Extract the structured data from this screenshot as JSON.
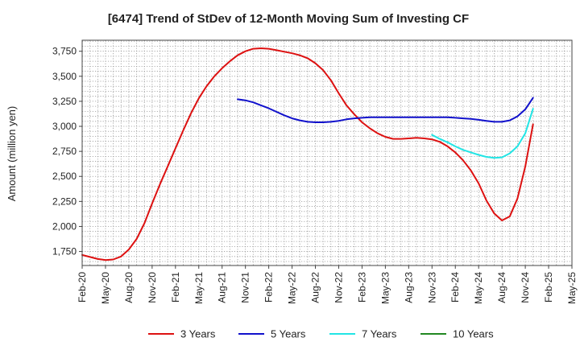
{
  "chart_data": {
    "type": "line",
    "title": "[6474]  Trend of StDev of 12-Month Moving Sum of Investing CF",
    "xlabel": "",
    "ylabel": "Amount (million yen)",
    "x_tick_labels": [
      "Feb-20",
      "May-20",
      "Aug-20",
      "Nov-20",
      "Feb-21",
      "May-21",
      "Aug-21",
      "Nov-21",
      "Feb-22",
      "May-22",
      "Aug-22",
      "Nov-22",
      "Feb-23",
      "May-23",
      "Aug-23",
      "Nov-23",
      "Feb-24",
      "May-24",
      "Aug-24",
      "Nov-24",
      "Feb-25",
      "May-25"
    ],
    "y_ticks": [
      1750,
      2000,
      2250,
      2500,
      2750,
      3000,
      3250,
      3500,
      3750
    ],
    "ylim": [
      1610,
      3860
    ],
    "grid": true,
    "legend_position": "bottom",
    "series": [
      {
        "name": "3 Years",
        "color": "#dd1111",
        "points": [
          [
            "2020-02",
            1715
          ],
          [
            "2020-03",
            1695
          ],
          [
            "2020-04",
            1675
          ],
          [
            "2020-05",
            1665
          ],
          [
            "2020-06",
            1670
          ],
          [
            "2020-07",
            1700
          ],
          [
            "2020-08",
            1770
          ],
          [
            "2020-09",
            1875
          ],
          [
            "2020-10",
            2030
          ],
          [
            "2020-11",
            2230
          ],
          [
            "2020-12",
            2420
          ],
          [
            "2021-01",
            2600
          ],
          [
            "2021-02",
            2780
          ],
          [
            "2021-03",
            2960
          ],
          [
            "2021-04",
            3130
          ],
          [
            "2021-05",
            3280
          ],
          [
            "2021-06",
            3400
          ],
          [
            "2021-07",
            3500
          ],
          [
            "2021-08",
            3580
          ],
          [
            "2021-09",
            3650
          ],
          [
            "2021-10",
            3710
          ],
          [
            "2021-11",
            3750
          ],
          [
            "2021-12",
            3775
          ],
          [
            "2022-01",
            3780
          ],
          [
            "2022-02",
            3775
          ],
          [
            "2022-03",
            3760
          ],
          [
            "2022-04",
            3745
          ],
          [
            "2022-05",
            3730
          ],
          [
            "2022-06",
            3710
          ],
          [
            "2022-07",
            3680
          ],
          [
            "2022-08",
            3630
          ],
          [
            "2022-09",
            3560
          ],
          [
            "2022-10",
            3460
          ],
          [
            "2022-11",
            3330
          ],
          [
            "2022-12",
            3210
          ],
          [
            "2023-01",
            3120
          ],
          [
            "2023-02",
            3040
          ],
          [
            "2023-03",
            2980
          ],
          [
            "2023-04",
            2930
          ],
          [
            "2023-05",
            2895
          ],
          [
            "2023-06",
            2875
          ],
          [
            "2023-07",
            2875
          ],
          [
            "2023-08",
            2880
          ],
          [
            "2023-09",
            2885
          ],
          [
            "2023-10",
            2880
          ],
          [
            "2023-11",
            2870
          ],
          [
            "2023-12",
            2845
          ],
          [
            "2024-01",
            2800
          ],
          [
            "2024-02",
            2740
          ],
          [
            "2024-03",
            2660
          ],
          [
            "2024-04",
            2560
          ],
          [
            "2024-05",
            2430
          ],
          [
            "2024-06",
            2260
          ],
          [
            "2024-07",
            2130
          ],
          [
            "2024-08",
            2060
          ],
          [
            "2024-09",
            2100
          ],
          [
            "2024-10",
            2280
          ],
          [
            "2024-11",
            2600
          ],
          [
            "2024-12",
            3020
          ]
        ]
      },
      {
        "name": "5 Years",
        "color": "#1111cc",
        "points": [
          [
            "2021-10",
            3270
          ],
          [
            "2021-11",
            3260
          ],
          [
            "2021-12",
            3240
          ],
          [
            "2022-01",
            3210
          ],
          [
            "2022-02",
            3180
          ],
          [
            "2022-03",
            3145
          ],
          [
            "2022-04",
            3110
          ],
          [
            "2022-05",
            3080
          ],
          [
            "2022-06",
            3060
          ],
          [
            "2022-07",
            3045
          ],
          [
            "2022-08",
            3040
          ],
          [
            "2022-09",
            3040
          ],
          [
            "2022-10",
            3045
          ],
          [
            "2022-11",
            3055
          ],
          [
            "2022-12",
            3070
          ],
          [
            "2023-01",
            3080
          ],
          [
            "2023-02",
            3085
          ],
          [
            "2023-03",
            3090
          ],
          [
            "2023-04",
            3090
          ],
          [
            "2023-05",
            3090
          ],
          [
            "2023-06",
            3090
          ],
          [
            "2023-07",
            3090
          ],
          [
            "2023-08",
            3090
          ],
          [
            "2023-09",
            3090
          ],
          [
            "2023-10",
            3090
          ],
          [
            "2023-11",
            3090
          ],
          [
            "2023-12",
            3090
          ],
          [
            "2024-01",
            3090
          ],
          [
            "2024-02",
            3085
          ],
          [
            "2024-03",
            3080
          ],
          [
            "2024-04",
            3075
          ],
          [
            "2024-05",
            3065
          ],
          [
            "2024-06",
            3055
          ],
          [
            "2024-07",
            3045
          ],
          [
            "2024-08",
            3045
          ],
          [
            "2024-09",
            3060
          ],
          [
            "2024-10",
            3100
          ],
          [
            "2024-11",
            3170
          ],
          [
            "2024-12",
            3285
          ]
        ]
      },
      {
        "name": "7 Years",
        "color": "#22e5e5",
        "points": [
          [
            "2023-11",
            2915
          ],
          [
            "2023-12",
            2875
          ],
          [
            "2024-01",
            2840
          ],
          [
            "2024-02",
            2800
          ],
          [
            "2024-03",
            2765
          ],
          [
            "2024-04",
            2740
          ],
          [
            "2024-05",
            2715
          ],
          [
            "2024-06",
            2695
          ],
          [
            "2024-07",
            2685
          ],
          [
            "2024-08",
            2690
          ],
          [
            "2024-09",
            2730
          ],
          [
            "2024-10",
            2800
          ],
          [
            "2024-11",
            2930
          ],
          [
            "2024-12",
            3175
          ]
        ]
      },
      {
        "name": "10 Years",
        "color": "#228822",
        "points": []
      }
    ]
  }
}
